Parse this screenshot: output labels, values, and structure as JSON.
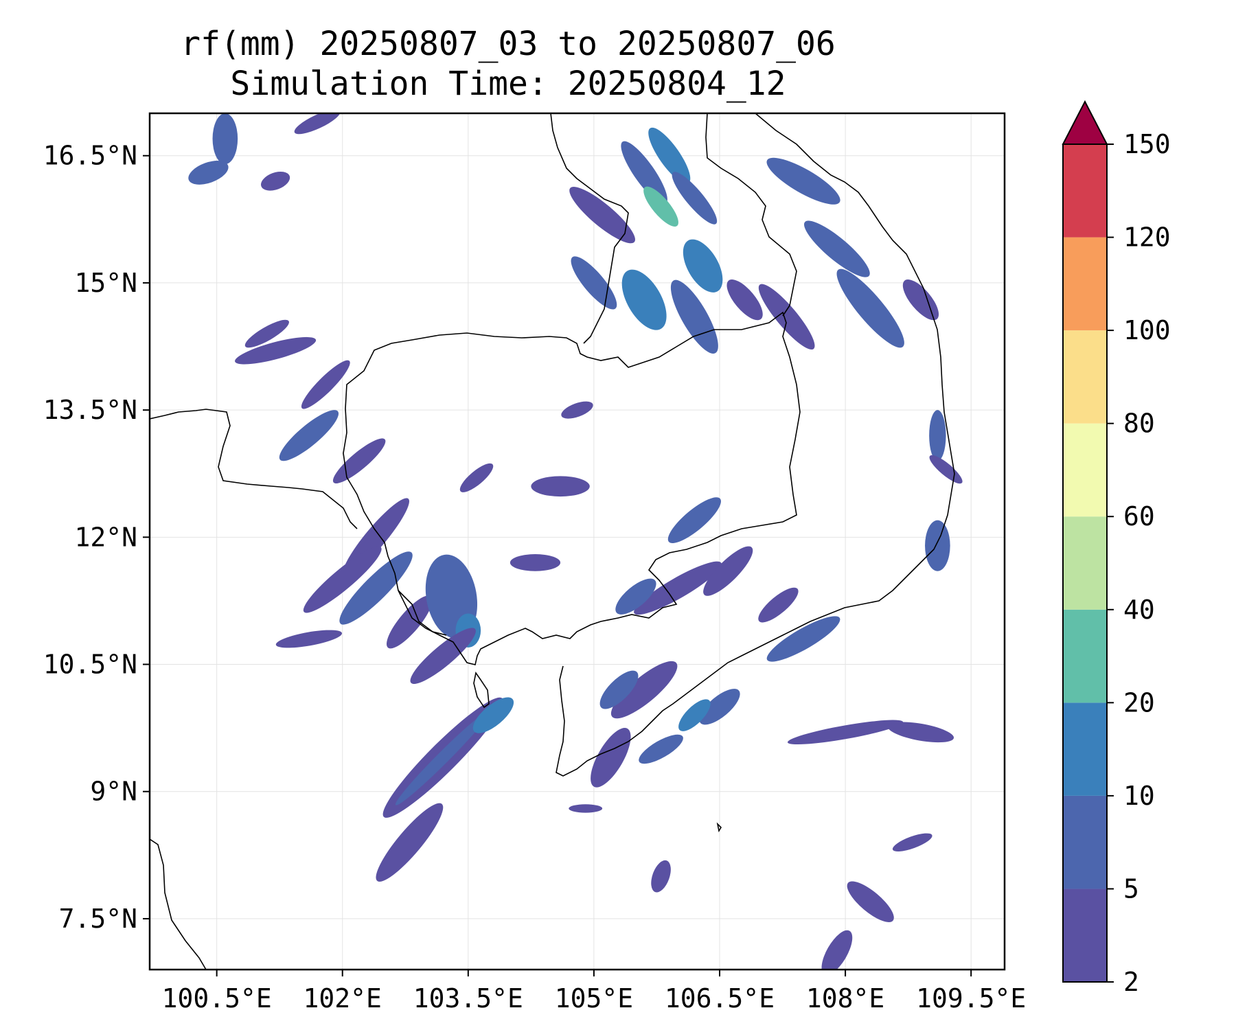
{
  "title": {
    "line1": "rf(mm) 20250807_03 to 20250807_06",
    "line2": "Simulation Time: 20250804_12"
  },
  "map": {
    "lon_range": [
      99.7,
      109.9
    ],
    "lat_range": [
      6.9,
      17.0
    ],
    "lon_ticks": [
      {
        "value": 100.5,
        "label": "100.5°E"
      },
      {
        "value": 102.0,
        "label": "102°E"
      },
      {
        "value": 103.5,
        "label": "103.5°E"
      },
      {
        "value": 105.0,
        "label": "105°E"
      },
      {
        "value": 106.5,
        "label": "106.5°E"
      },
      {
        "value": 108.0,
        "label": "108°E"
      },
      {
        "value": 109.5,
        "label": "109.5°E"
      }
    ],
    "lat_ticks": [
      {
        "value": 16.5,
        "label": "16.5°N"
      },
      {
        "value": 15.0,
        "label": "15°N"
      },
      {
        "value": 13.5,
        "label": "13.5°N"
      },
      {
        "value": 12.0,
        "label": "12°N"
      },
      {
        "value": 10.5,
        "label": "10.5°N"
      },
      {
        "value": 9.0,
        "label": "9°N"
      },
      {
        "value": 7.5,
        "label": "7.5°N"
      }
    ],
    "grid": true
  },
  "colorbar": {
    "levels": [
      2,
      5,
      10,
      20,
      40,
      60,
      80,
      100,
      120,
      150
    ],
    "labels": [
      "2",
      "5",
      "10",
      "20",
      "40",
      "60",
      "80",
      "100",
      "120",
      "150"
    ],
    "colors": [
      "#5a51a2",
      "#4c66ae",
      "#3a80bb",
      "#61bfa9",
      "#bde3a2",
      "#f2fab0",
      "#fbde8a",
      "#f89d5b",
      "#d43e4f",
      "#9e0142"
    ],
    "extend": "max"
  },
  "rain_cells": [
    {
      "lon": 100.6,
      "lat": 16.7,
      "rx": 0.15,
      "ry": 0.3,
      "rot": 0,
      "level": 1
    },
    {
      "lon": 100.4,
      "lat": 16.3,
      "rx": 0.25,
      "ry": 0.12,
      "rot": 20,
      "level": 1
    },
    {
      "lon": 101.2,
      "lat": 16.2,
      "rx": 0.18,
      "ry": 0.1,
      "rot": 20,
      "level": 0
    },
    {
      "lon": 101.7,
      "lat": 16.9,
      "rx": 0.3,
      "ry": 0.08,
      "rot": 25,
      "level": 0
    },
    {
      "lon": 101.2,
      "lat": 14.2,
      "rx": 0.5,
      "ry": 0.1,
      "rot": 15,
      "level": 0
    },
    {
      "lon": 101.1,
      "lat": 14.4,
      "rx": 0.3,
      "ry": 0.08,
      "rot": 30,
      "level": 0
    },
    {
      "lon": 101.8,
      "lat": 13.8,
      "rx": 0.4,
      "ry": 0.09,
      "rot": 45,
      "level": 0
    },
    {
      "lon": 101.6,
      "lat": 13.2,
      "rx": 0.45,
      "ry": 0.12,
      "rot": 40,
      "level": 1
    },
    {
      "lon": 102.2,
      "lat": 12.9,
      "rx": 0.4,
      "ry": 0.1,
      "rot": 40,
      "level": 0
    },
    {
      "lon": 102.4,
      "lat": 12.0,
      "rx": 0.6,
      "ry": 0.12,
      "rot": 50,
      "level": 0
    },
    {
      "lon": 102.0,
      "lat": 11.5,
      "rx": 0.6,
      "ry": 0.12,
      "rot": 40,
      "level": 0
    },
    {
      "lon": 102.4,
      "lat": 11.4,
      "rx": 0.6,
      "ry": 0.14,
      "rot": 45,
      "level": 1
    },
    {
      "lon": 102.8,
      "lat": 11.0,
      "rx": 0.4,
      "ry": 0.12,
      "rot": 50,
      "level": 0
    },
    {
      "lon": 103.3,
      "lat": 11.3,
      "rx": 0.3,
      "ry": 0.5,
      "rot": 10,
      "level": 1
    },
    {
      "lon": 103.5,
      "lat": 10.9,
      "rx": 0.15,
      "ry": 0.2,
      "rot": 0,
      "level": 2
    },
    {
      "lon": 103.2,
      "lat": 10.6,
      "rx": 0.5,
      "ry": 0.12,
      "rot": 40,
      "level": 0
    },
    {
      "lon": 101.6,
      "lat": 10.8,
      "rx": 0.4,
      "ry": 0.08,
      "rot": 10,
      "level": 0
    },
    {
      "lon": 103.2,
      "lat": 9.4,
      "rx": 1.0,
      "ry": 0.17,
      "rot": 45,
      "level": 0
    },
    {
      "lon": 103.2,
      "lat": 9.4,
      "rx": 0.8,
      "ry": 0.07,
      "rot": 45,
      "level": 1
    },
    {
      "lon": 103.8,
      "lat": 9.9,
      "rx": 0.3,
      "ry": 0.12,
      "rot": 40,
      "level": 2
    },
    {
      "lon": 102.8,
      "lat": 8.4,
      "rx": 0.6,
      "ry": 0.14,
      "rot": 50,
      "level": 0
    },
    {
      "lon": 104.6,
      "lat": 12.6,
      "rx": 0.35,
      "ry": 0.12,
      "rot": 0,
      "level": 0
    },
    {
      "lon": 103.6,
      "lat": 12.7,
      "rx": 0.25,
      "ry": 0.08,
      "rot": 40,
      "level": 0
    },
    {
      "lon": 104.3,
      "lat": 11.7,
      "rx": 0.3,
      "ry": 0.1,
      "rot": 0,
      "level": 0
    },
    {
      "lon": 104.8,
      "lat": 13.5,
      "rx": 0.2,
      "ry": 0.08,
      "rot": 20,
      "level": 0
    },
    {
      "lon": 105.1,
      "lat": 15.8,
      "rx": 0.5,
      "ry": 0.13,
      "rot": -40,
      "level": 0
    },
    {
      "lon": 105.6,
      "lat": 16.3,
      "rx": 0.45,
      "ry": 0.12,
      "rot": -55,
      "level": 1
    },
    {
      "lon": 105.8,
      "lat": 15.9,
      "rx": 0.3,
      "ry": 0.1,
      "rot": -50,
      "level": 3
    },
    {
      "lon": 105.9,
      "lat": 16.5,
      "rx": 0.4,
      "ry": 0.12,
      "rot": -55,
      "level": 2
    },
    {
      "lon": 106.2,
      "lat": 16.0,
      "rx": 0.4,
      "ry": 0.1,
      "rot": -50,
      "level": 1
    },
    {
      "lon": 105.0,
      "lat": 15.0,
      "rx": 0.4,
      "ry": 0.12,
      "rot": -50,
      "level": 1
    },
    {
      "lon": 105.6,
      "lat": 14.8,
      "rx": 0.4,
      "ry": 0.2,
      "rot": -60,
      "level": 2
    },
    {
      "lon": 106.2,
      "lat": 14.6,
      "rx": 0.5,
      "ry": 0.15,
      "rot": -60,
      "level": 1
    },
    {
      "lon": 106.3,
      "lat": 15.2,
      "rx": 0.35,
      "ry": 0.18,
      "rot": -60,
      "level": 2
    },
    {
      "lon": 106.8,
      "lat": 14.8,
      "rx": 0.3,
      "ry": 0.12,
      "rot": -50,
      "level": 0
    },
    {
      "lon": 107.5,
      "lat": 16.2,
      "rx": 0.5,
      "ry": 0.14,
      "rot": -30,
      "level": 1
    },
    {
      "lon": 107.9,
      "lat": 15.4,
      "rx": 0.5,
      "ry": 0.13,
      "rot": -40,
      "level": 1
    },
    {
      "lon": 107.3,
      "lat": 14.6,
      "rx": 0.5,
      "ry": 0.12,
      "rot": -50,
      "level": 0
    },
    {
      "lon": 108.3,
      "lat": 14.7,
      "rx": 0.6,
      "ry": 0.15,
      "rot": -50,
      "level": 1
    },
    {
      "lon": 108.9,
      "lat": 14.8,
      "rx": 0.3,
      "ry": 0.12,
      "rot": -50,
      "level": 0
    },
    {
      "lon": 106.0,
      "lat": 11.4,
      "rx": 0.6,
      "ry": 0.12,
      "rot": 30,
      "level": 0
    },
    {
      "lon": 106.2,
      "lat": 12.2,
      "rx": 0.4,
      "ry": 0.12,
      "rot": 40,
      "level": 1
    },
    {
      "lon": 106.6,
      "lat": 11.6,
      "rx": 0.4,
      "ry": 0.12,
      "rot": 45,
      "level": 0
    },
    {
      "lon": 105.5,
      "lat": 11.3,
      "rx": 0.3,
      "ry": 0.12,
      "rot": 40,
      "level": 1
    },
    {
      "lon": 107.2,
      "lat": 11.2,
      "rx": 0.3,
      "ry": 0.1,
      "rot": 40,
      "level": 0
    },
    {
      "lon": 107.5,
      "lat": 10.8,
      "rx": 0.5,
      "ry": 0.12,
      "rot": 30,
      "level": 1
    },
    {
      "lon": 105.6,
      "lat": 10.2,
      "rx": 0.5,
      "ry": 0.15,
      "rot": 40,
      "level": 0
    },
    {
      "lon": 105.2,
      "lat": 9.4,
      "rx": 0.4,
      "ry": 0.15,
      "rot": 60,
      "level": 0
    },
    {
      "lon": 105.3,
      "lat": 10.2,
      "rx": 0.3,
      "ry": 0.12,
      "rot": 45,
      "level": 1
    },
    {
      "lon": 105.8,
      "lat": 9.5,
      "rx": 0.3,
      "ry": 0.1,
      "rot": 30,
      "level": 1
    },
    {
      "lon": 106.5,
      "lat": 10.0,
      "rx": 0.3,
      "ry": 0.12,
      "rot": 40,
      "level": 1
    },
    {
      "lon": 106.2,
      "lat": 9.9,
      "rx": 0.25,
      "ry": 0.1,
      "rot": 45,
      "level": 2
    },
    {
      "lon": 108.0,
      "lat": 9.7,
      "rx": 0.7,
      "ry": 0.08,
      "rot": 10,
      "level": 0
    },
    {
      "lon": 108.9,
      "lat": 9.7,
      "rx": 0.4,
      "ry": 0.1,
      "rot": -10,
      "level": 0
    },
    {
      "lon": 109.1,
      "lat": 11.9,
      "rx": 0.15,
      "ry": 0.3,
      "rot": 0,
      "level": 1
    },
    {
      "lon": 109.1,
      "lat": 13.2,
      "rx": 0.1,
      "ry": 0.3,
      "rot": 0,
      "level": 1
    },
    {
      "lon": 109.2,
      "lat": 12.8,
      "rx": 0.25,
      "ry": 0.07,
      "rot": -40,
      "level": 0
    },
    {
      "lon": 108.3,
      "lat": 7.7,
      "rx": 0.35,
      "ry": 0.12,
      "rot": -40,
      "level": 0
    },
    {
      "lon": 107.9,
      "lat": 7.1,
      "rx": 0.3,
      "ry": 0.12,
      "rot": 60,
      "level": 0
    },
    {
      "lon": 108.8,
      "lat": 8.4,
      "rx": 0.25,
      "ry": 0.07,
      "rot": 20,
      "level": 0
    },
    {
      "lon": 104.9,
      "lat": 8.8,
      "rx": 0.2,
      "ry": 0.05,
      "rot": 0,
      "level": 0
    },
    {
      "lon": 105.8,
      "lat": 8.0,
      "rx": 0.2,
      "ry": 0.1,
      "rot": 70,
      "level": 0
    }
  ]
}
